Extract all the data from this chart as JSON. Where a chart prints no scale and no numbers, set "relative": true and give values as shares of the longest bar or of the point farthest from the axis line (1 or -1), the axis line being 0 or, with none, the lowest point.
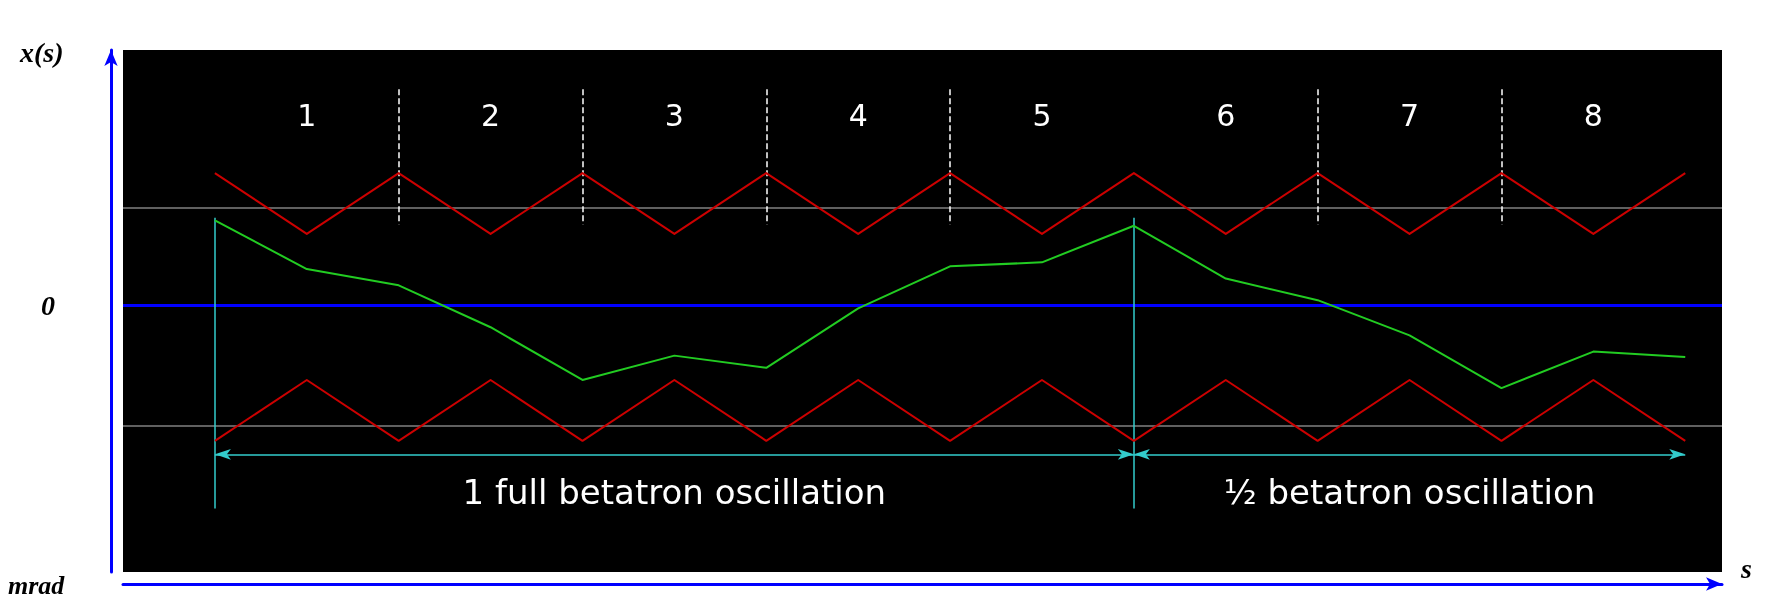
{
  "chart_data": {
    "type": "line",
    "relative": true,
    "ylabel": "x(s)",
    "xlabel": "s",
    "x": [
      0,
      0.5,
      1,
      1.5,
      2,
      2.5,
      3,
      3.5,
      4,
      4.5,
      5,
      5.5,
      6,
      6.5,
      7,
      7.5,
      8
    ],
    "xlim": [
      -0.5,
      8.2
    ],
    "xticks": [
      {
        "value": 0.5,
        "label": "1"
      },
      {
        "value": 1.5,
        "label": "2"
      },
      {
        "value": 2.5,
        "label": "3"
      },
      {
        "value": 3.5,
        "label": "4"
      },
      {
        "value": 4.5,
        "label": "5"
      },
      {
        "value": 5.5,
        "label": "6"
      },
      {
        "value": 6.5,
        "label": "7"
      },
      {
        "value": 7.5,
        "label": "8"
      }
    ],
    "grid": false,
    "marker": "none",
    "series": [
      {
        "color": "#cc0000",
        "values": [
          0.98,
          0.53,
          0.98,
          0.53,
          0.98,
          0.53,
          0.98,
          0.53,
          0.98,
          0.53,
          0.98,
          0.53,
          0.98,
          0.53,
          0.98,
          0.53,
          0.98
        ]
      },
      {
        "color": "#cc0000",
        "values": [
          -1,
          -0.55,
          -1,
          -0.55,
          -1,
          -0.55,
          -1,
          -0.55,
          -1,
          -0.55,
          -1,
          -0.55,
          -1,
          -0.55,
          -1,
          -0.55,
          -1
        ]
      },
      {
        "color": "#22cc22",
        "values": [
          0.63,
          0.27,
          0.15,
          -0.16,
          -0.55,
          -0.37,
          -0.46,
          -0.02,
          0.29,
          0.32,
          0.59,
          0.2,
          0.04,
          -0.22,
          -0.61,
          -0.34,
          -0.38
        ]
      }
    ],
    "ref_lines": [
      {
        "axis": "y",
        "value": 0,
        "color": "#0000ff"
      },
      {
        "axis": "y",
        "value": 0.72,
        "color": "#808080"
      },
      {
        "axis": "y",
        "value": -0.89,
        "color": "#808080"
      },
      {
        "axis": "x",
        "value": 0,
        "color": "#33cccc"
      },
      {
        "axis": "x",
        "value": 5,
        "color": "#33cccc"
      },
      {
        "axis": "x",
        "value": 1,
        "color": "#ffffff",
        "line_style": "dashed"
      },
      {
        "axis": "x",
        "value": 2,
        "color": "#ffffff",
        "line_style": "dashed"
      },
      {
        "axis": "x",
        "value": 3,
        "color": "#ffffff",
        "line_style": "dashed"
      },
      {
        "axis": "x",
        "value": 4,
        "color": "#ffffff",
        "line_style": "dashed"
      },
      {
        "axis": "x",
        "value": 6,
        "color": "#ffffff",
        "line_style": "dashed"
      },
      {
        "axis": "x",
        "value": 7,
        "color": "#ffffff",
        "line_style": "dashed"
      }
    ],
    "annotations": [
      "0",
      "mrad",
      "1 full betatron oscillation",
      "½ betatron oscillation"
    ]
  }
}
